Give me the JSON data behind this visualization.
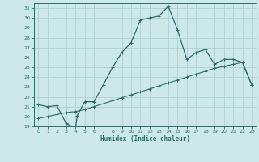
{
  "title": "",
  "xlabel": "Humidex (Indice chaleur)",
  "bg_color": "#cce8e8",
  "line_color": "#2d6b6b",
  "grid_color": "#b0d0d0",
  "xlim": [
    -0.5,
    23.5
  ],
  "ylim": [
    19,
    31.5
  ],
  "xticks": [
    0,
    1,
    2,
    3,
    4,
    5,
    6,
    7,
    8,
    9,
    10,
    11,
    12,
    13,
    14,
    15,
    16,
    17,
    18,
    19,
    20,
    21,
    22,
    23
  ],
  "yticks": [
    19,
    20,
    21,
    22,
    23,
    24,
    25,
    26,
    27,
    28,
    29,
    30,
    31
  ],
  "upper_line_x": [
    0,
    1,
    2,
    3,
    4,
    4.2,
    5,
    6,
    7,
    8,
    9,
    10,
    11,
    12,
    13,
    14,
    15,
    16,
    17,
    18,
    19,
    20,
    21,
    22,
    23
  ],
  "upper_line_y": [
    21.2,
    21.0,
    21.1,
    19.3,
    18.8,
    20.1,
    21.5,
    21.5,
    23.2,
    25.0,
    26.5,
    27.5,
    29.8,
    30.0,
    30.2,
    31.2,
    28.8,
    25.8,
    26.5,
    26.8,
    25.3,
    25.8,
    25.8,
    25.5,
    23.2
  ],
  "lower_line_x": [
    0,
    1,
    2,
    3,
    4,
    5,
    6,
    7,
    8,
    9,
    10,
    11,
    12,
    13,
    14,
    15,
    16,
    17,
    18,
    19,
    20,
    21,
    22,
    23
  ],
  "lower_line_y": [
    19.8,
    20.0,
    20.2,
    20.4,
    20.5,
    20.7,
    21.0,
    21.3,
    21.6,
    21.9,
    22.2,
    22.5,
    22.8,
    23.1,
    23.4,
    23.7,
    24.0,
    24.3,
    24.6,
    24.9,
    25.1,
    25.3,
    25.5,
    23.2
  ]
}
